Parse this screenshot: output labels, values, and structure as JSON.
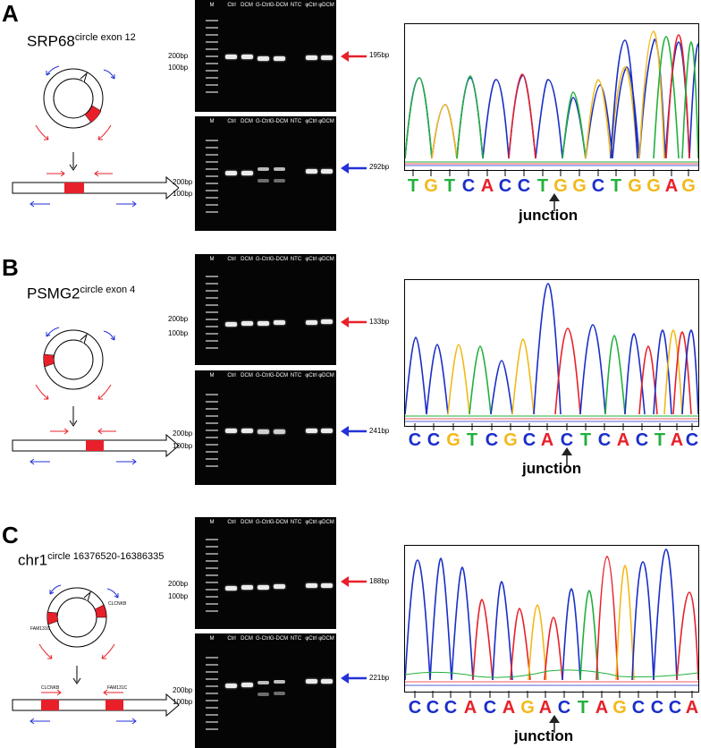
{
  "colors": {
    "A": "#e8202a",
    "C": "#1a2ec8",
    "G": "#f2b91a",
    "T": "#22b03c",
    "forward_primer": "#e8202a",
    "divergent_primer": "#2430d8",
    "exon": "#e8202a"
  },
  "gel_ladder_label": "M",
  "gel_lanes": [
    "Ctrl",
    "DCM",
    "G-Ctrl",
    "G-DCM",
    "NTC",
    "φCtrl",
    "φDCM"
  ],
  "junction_label": "junction",
  "panels": [
    {
      "label": "A",
      "gene": "SRP68",
      "gene_sup": "circle exon 12",
      "exon_labels": [],
      "linear_labels": [],
      "gel_top": {
        "sizes": [
          "200bp",
          "100bp"
        ],
        "product": "195bp",
        "arrow_color": "red",
        "bands": [
          1,
          1,
          1,
          1,
          0,
          1,
          1
        ]
      },
      "gel_bottom": {
        "sizes": [
          "200bp",
          "100bp"
        ],
        "product": "292bp",
        "arrow_color": "blue",
        "bands": [
          1,
          1,
          0.6,
          0.6,
          0,
          1,
          1
        ]
      },
      "sequence": [
        "T",
        "G",
        "T",
        "C",
        "A",
        "C",
        "C",
        "T",
        "G",
        "G",
        "C",
        "T",
        "G",
        "G",
        "A",
        "G"
      ],
      "junction_index": 8
    },
    {
      "label": "B",
      "gene": "PSMG2",
      "gene_sup": "circle exon 4",
      "exon_labels": [],
      "linear_labels": [],
      "gel_top": {
        "sizes": [
          "200bp",
          "100bp"
        ],
        "product": "133bp",
        "arrow_color": "red",
        "bands": [
          1,
          1,
          1,
          1,
          0,
          1,
          1
        ]
      },
      "gel_bottom": {
        "sizes": [
          "200bp",
          "100bp"
        ],
        "product": "241bp",
        "arrow_color": "blue",
        "bands": [
          1,
          1,
          0.8,
          0.8,
          0,
          1,
          1
        ]
      },
      "sequence": [
        "C",
        "C",
        "G",
        "T",
        "C",
        "G",
        "C",
        "A",
        "C",
        "T",
        "C",
        "A",
        "C",
        "T",
        "A",
        "C"
      ],
      "junction_index": 8
    },
    {
      "label": "C",
      "gene": "chr1",
      "gene_sup": "circle 16376520-16386335",
      "exon_labels": [
        "FAM131C",
        "CLCNKB"
      ],
      "linear_labels": [
        "CLCNKB",
        "FAM131C"
      ],
      "gel_top": {
        "sizes": [
          "200bp",
          "100bp"
        ],
        "product": "188bp",
        "arrow_color": "red",
        "bands": [
          1,
          1,
          1,
          1,
          0,
          1,
          1
        ]
      },
      "gel_bottom": {
        "sizes": [
          "200bp",
          "100bp"
        ],
        "product": "221bp",
        "arrow_color": "blue",
        "bands": [
          1,
          1,
          0.7,
          0.7,
          0,
          1,
          1
        ]
      },
      "sequence": [
        "C",
        "C",
        "C",
        "A",
        "C",
        "A",
        "G",
        "A",
        "C",
        "T",
        "A",
        "G",
        "C",
        "C",
        "C",
        "A"
      ],
      "junction_index": 8
    }
  ]
}
